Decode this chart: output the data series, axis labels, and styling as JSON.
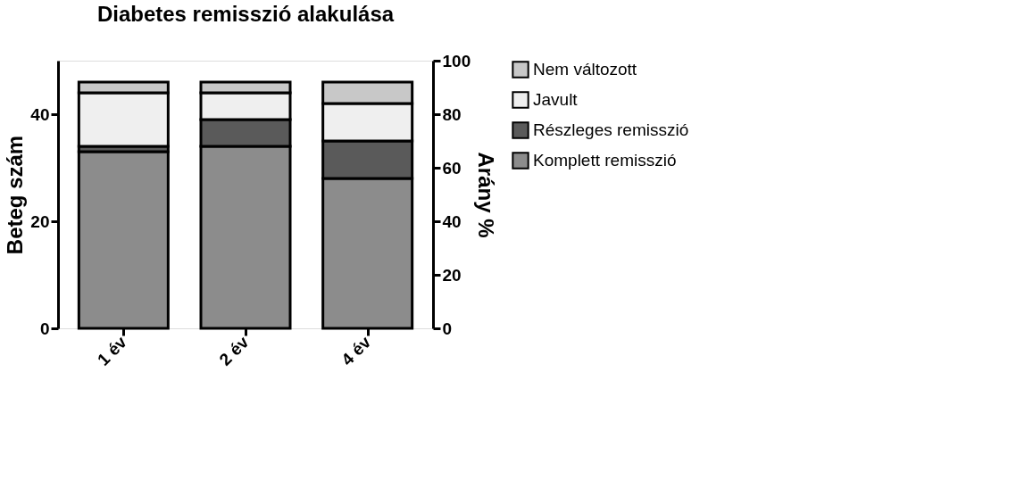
{
  "chart_data": {
    "type": "bar",
    "title": "Diabetes remisszió alakulása",
    "ylabel": "Beteg szám",
    "y2label": "Arány %",
    "categories": [
      "1 év",
      "2 év",
      "4 év"
    ],
    "stacked": true,
    "series": [
      {
        "name": "Komplett remisszió",
        "color": "#8c8c8c",
        "values": [
          33,
          34,
          28
        ]
      },
      {
        "name": "Részleges remisszió",
        "color": "#5a5a5a",
        "values": [
          1,
          5,
          7
        ]
      },
      {
        "name": "Javult",
        "color": "#efefef",
        "values": [
          10,
          5,
          7
        ]
      },
      {
        "name": "Nem változott",
        "color": "#c8c8c8",
        "values": [
          2,
          2,
          4
        ]
      }
    ],
    "ylim": [
      0,
      50
    ],
    "yticks": [
      0,
      20,
      40
    ],
    "y2lim": [
      0,
      100
    ],
    "y2ticks": [
      0,
      20,
      40,
      60,
      80,
      100
    ],
    "grid": false,
    "legend": "right"
  }
}
